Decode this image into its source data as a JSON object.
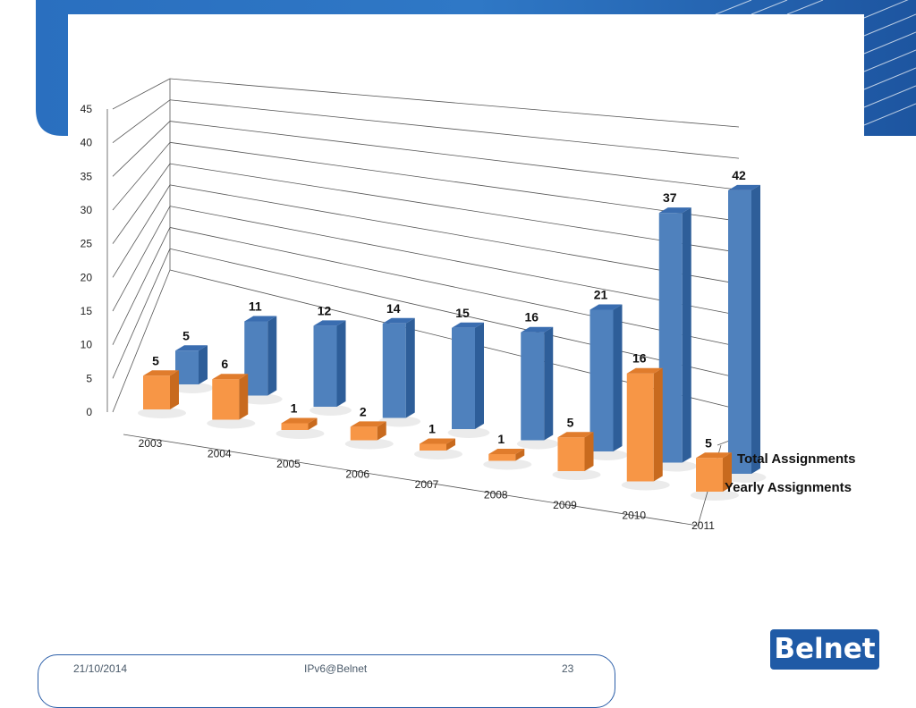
{
  "footer": {
    "date": "21/10/2014",
    "title": "IPv6@Belnet",
    "page": "23"
  },
  "logo": {
    "text": "Belnet"
  },
  "colors": {
    "total": "#4f81bd",
    "yearly": "#f79646",
    "banner": "#1f5aa6"
  },
  "chart_data": {
    "type": "bar",
    "subtype": "3d-clustered-column",
    "categories": [
      "2003",
      "2004",
      "2005",
      "2006",
      "2007",
      "2008",
      "2009",
      "2010",
      "2011"
    ],
    "series": [
      {
        "name": "Total Assignments",
        "values": [
          5,
          11,
          12,
          14,
          15,
          16,
          21,
          37,
          42
        ]
      },
      {
        "name": "Yearly Assignments",
        "values": [
          5,
          6,
          1,
          2,
          1,
          1,
          5,
          16,
          5
        ]
      }
    ],
    "data_labels": {
      "total": [
        "5",
        "11",
        "12",
        "14",
        "15",
        "16",
        "21",
        "37",
        "42"
      ],
      "yearly": [
        "5",
        "6",
        "1",
        "2",
        "1",
        "1",
        "5",
        "16",
        "5"
      ]
    },
    "y_ticks": [
      "0",
      "5",
      "10",
      "15",
      "20",
      "25",
      "30",
      "35",
      "40",
      "45"
    ],
    "ylim": [
      0,
      45
    ],
    "grid": true,
    "legend": "depth-axis-right"
  }
}
